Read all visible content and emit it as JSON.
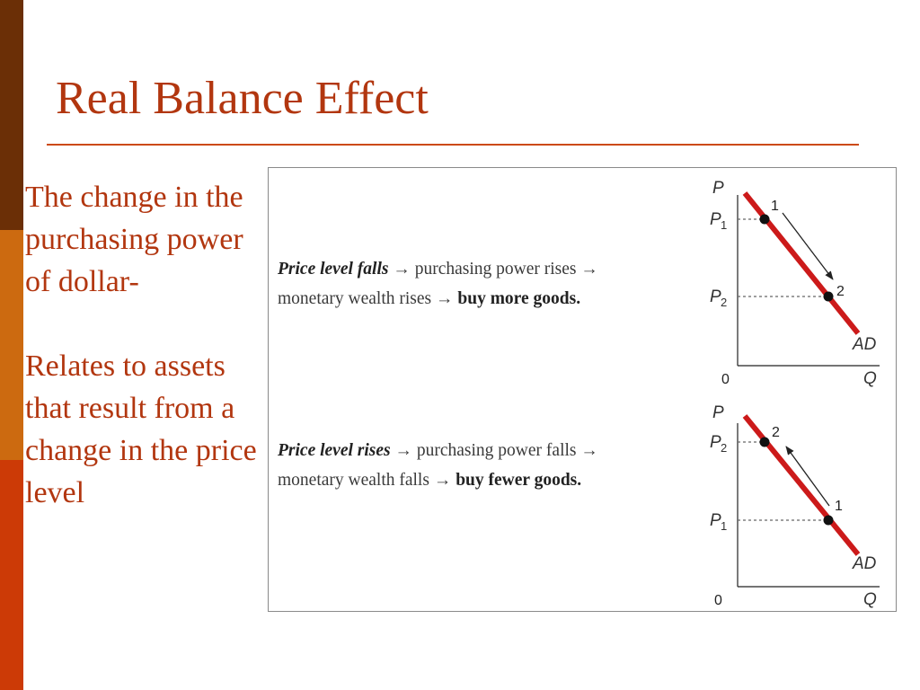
{
  "slide": {
    "title": "Real Balance Effect",
    "paragraph1": "The change in the purchasing power of dollar-",
    "paragraph2": "Relates to assets that result from a change in the price level"
  },
  "colors": {
    "title": "#b2360f",
    "rule": "#cc4a12",
    "bar_top": "#6b2f06",
    "bar_mid": "#cc6a10",
    "bar_bottom": "#cc3a06",
    "ad_curve": "#cc1a1a"
  },
  "figure": {
    "panel1": {
      "caption_italic": "Price level falls",
      "caption_rest1": "→ purchasing power rises →",
      "caption_rest2": "monetary wealth rises →",
      "caption_bold": "buy more goods.",
      "y_axis": "P",
      "x_axis": "Q",
      "origin": "0",
      "curve_label": "AD",
      "price_a": "P",
      "price_a_sub": "1",
      "price_b": "P",
      "price_b_sub": "2",
      "point_a": "1",
      "point_b": "2",
      "movement": "from point 1 to point 2 (down along AD)"
    },
    "panel2": {
      "caption_italic": "Price level rises",
      "caption_rest1": "→ purchasing power falls →",
      "caption_rest2": "monetary wealth falls →",
      "caption_bold": "buy fewer goods.",
      "y_axis": "P",
      "x_axis": "Q",
      "origin": "0",
      "curve_label": "AD",
      "price_a": "P",
      "price_a_sub": "2",
      "price_b": "P",
      "price_b_sub": "1",
      "point_a": "2",
      "point_b": "1",
      "movement": "from point 1 to point 2 (up along AD)"
    }
  }
}
